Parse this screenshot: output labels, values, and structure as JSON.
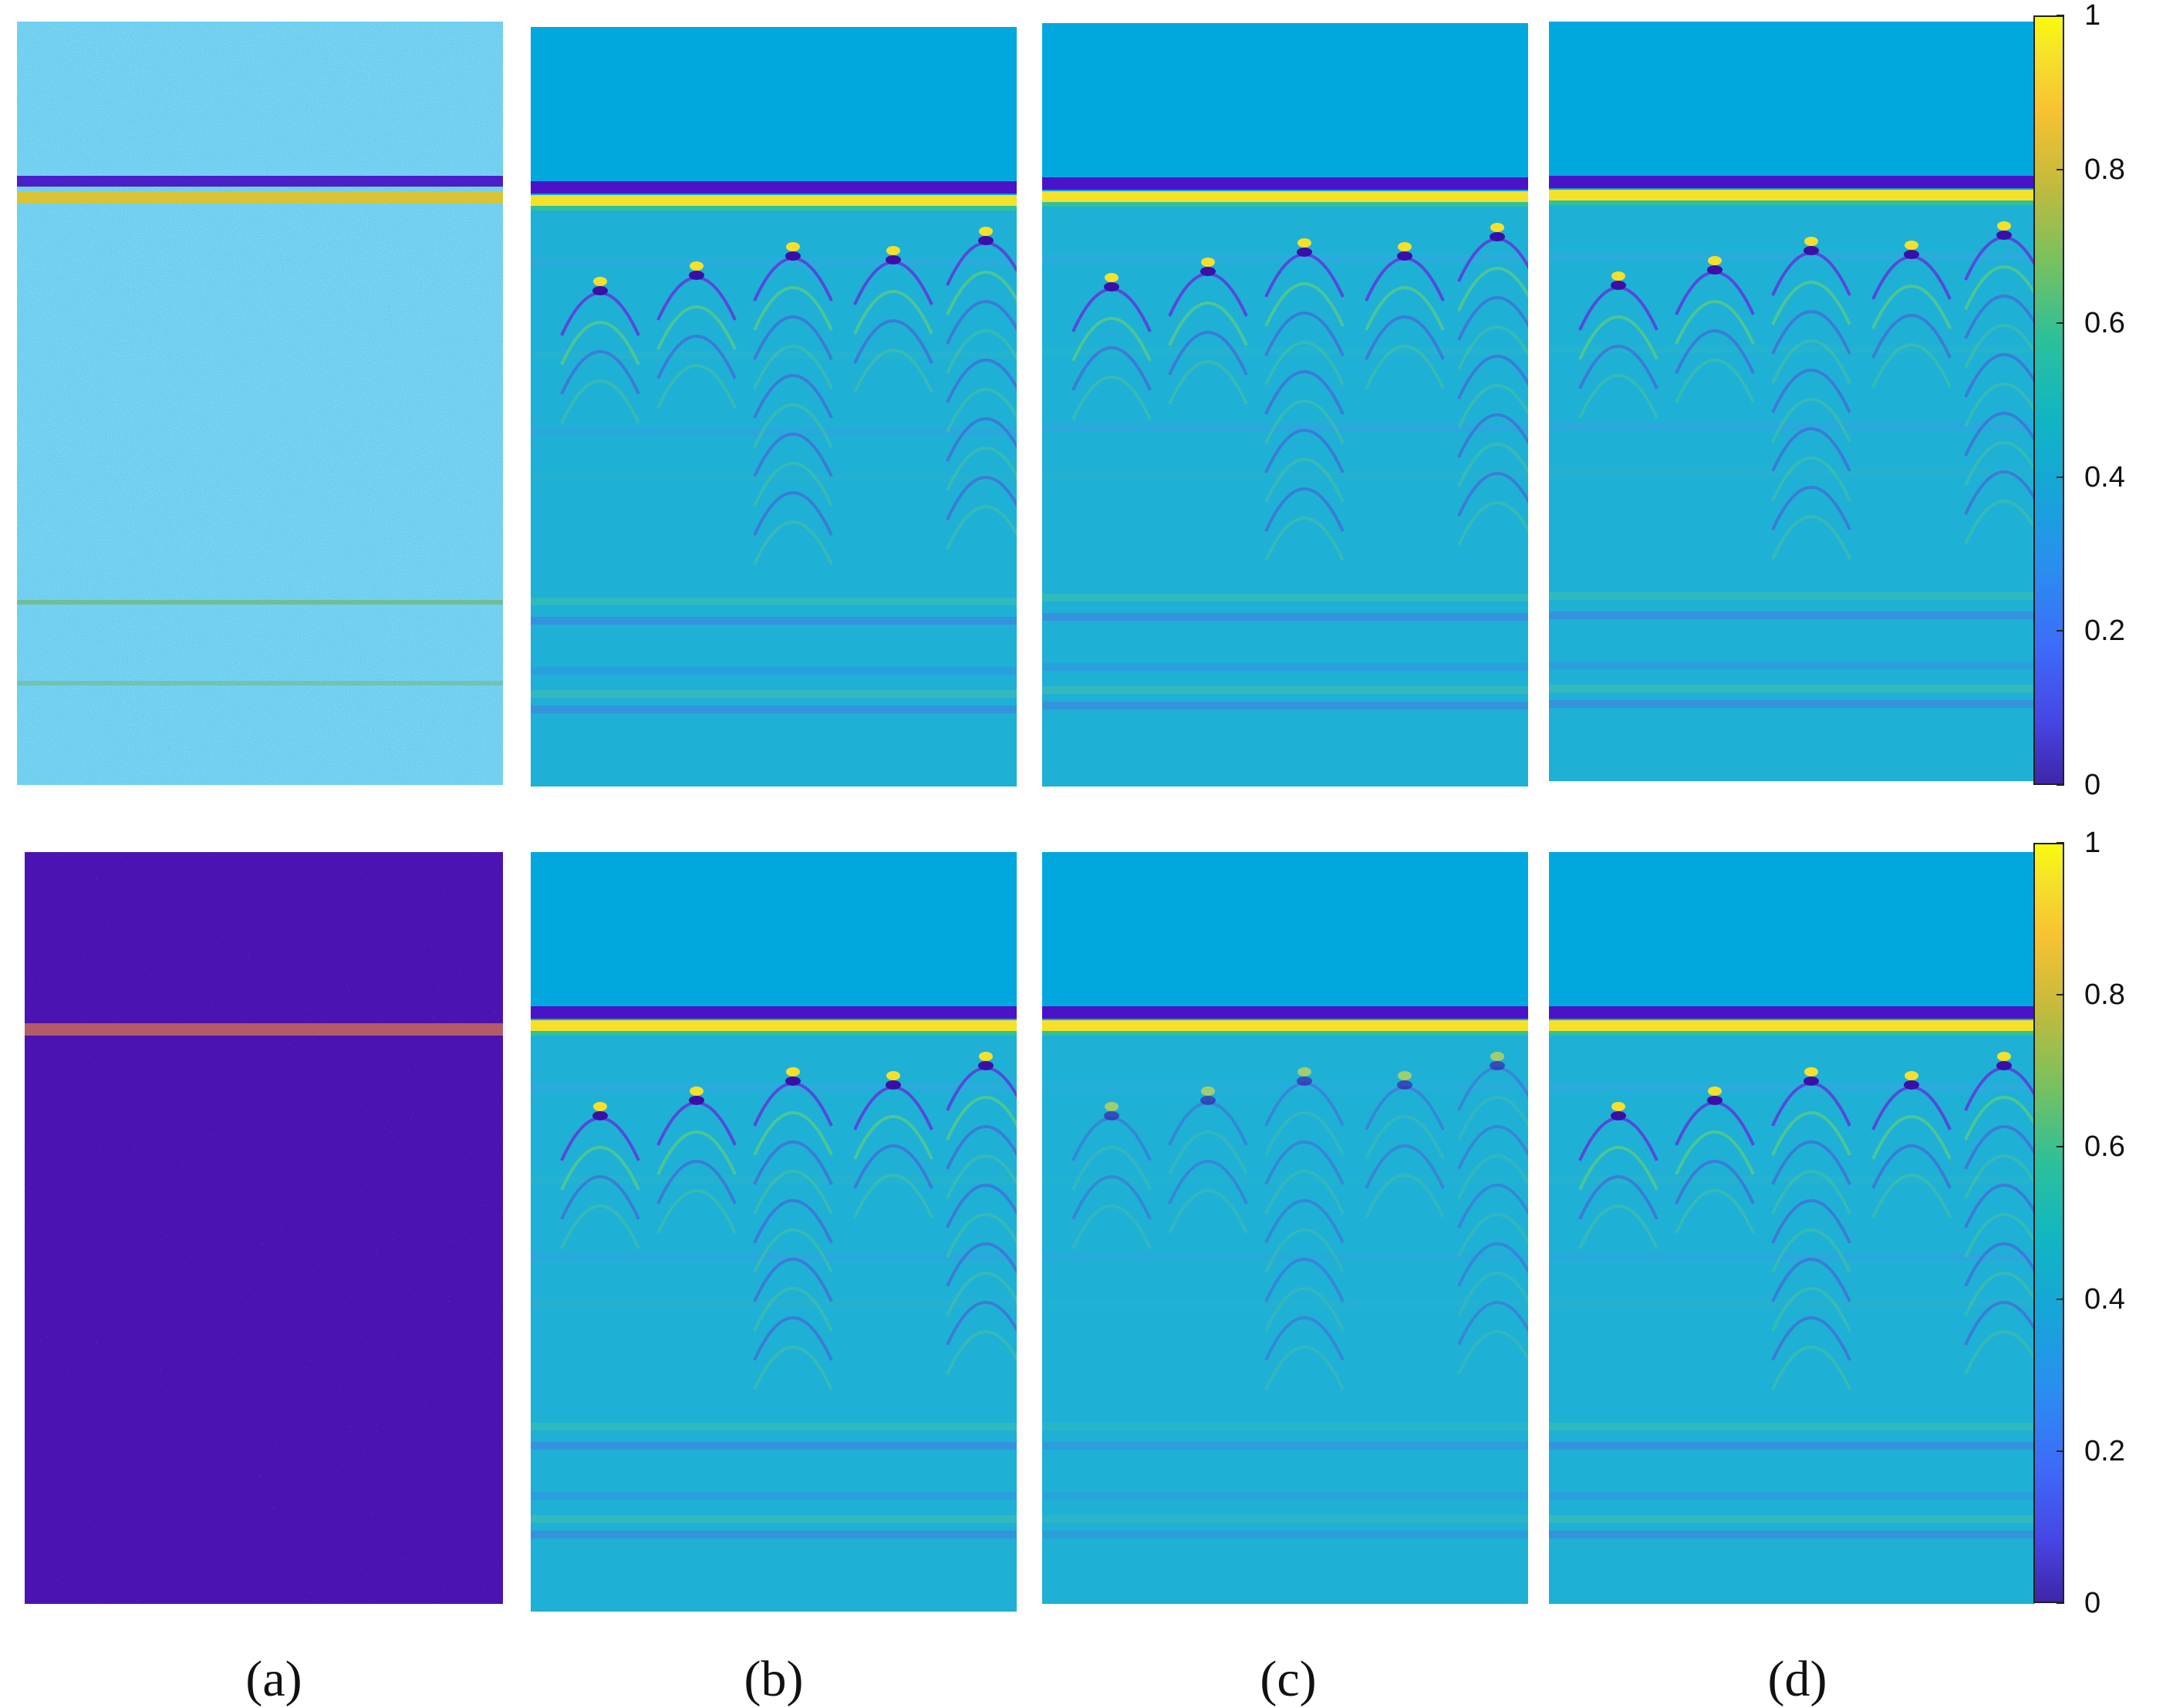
{
  "captions": [
    "(a)",
    "(b)",
    "(c)",
    "(d)"
  ],
  "colorbar": {
    "ticks": [
      "0",
      "0.2",
      "0.4",
      "0.6",
      "0.8",
      "1"
    ],
    "colormap": "parula",
    "range": [
      0,
      1
    ]
  },
  "colors": {
    "background_cyan": "#00a3d9",
    "reflection_dark": "#5a1bd6",
    "reflection_yellow": "#f5e12a",
    "noise_purple": "#4a1fb0",
    "noise_blue": "#3f7fe0"
  },
  "rows": [
    {
      "panels": [
        "noisy-input",
        "denoised-b",
        "denoised-c",
        "denoised-d"
      ]
    },
    {
      "panels": [
        "noisy-input",
        "denoised-b",
        "denoised-c",
        "denoised-d"
      ]
    }
  ]
}
